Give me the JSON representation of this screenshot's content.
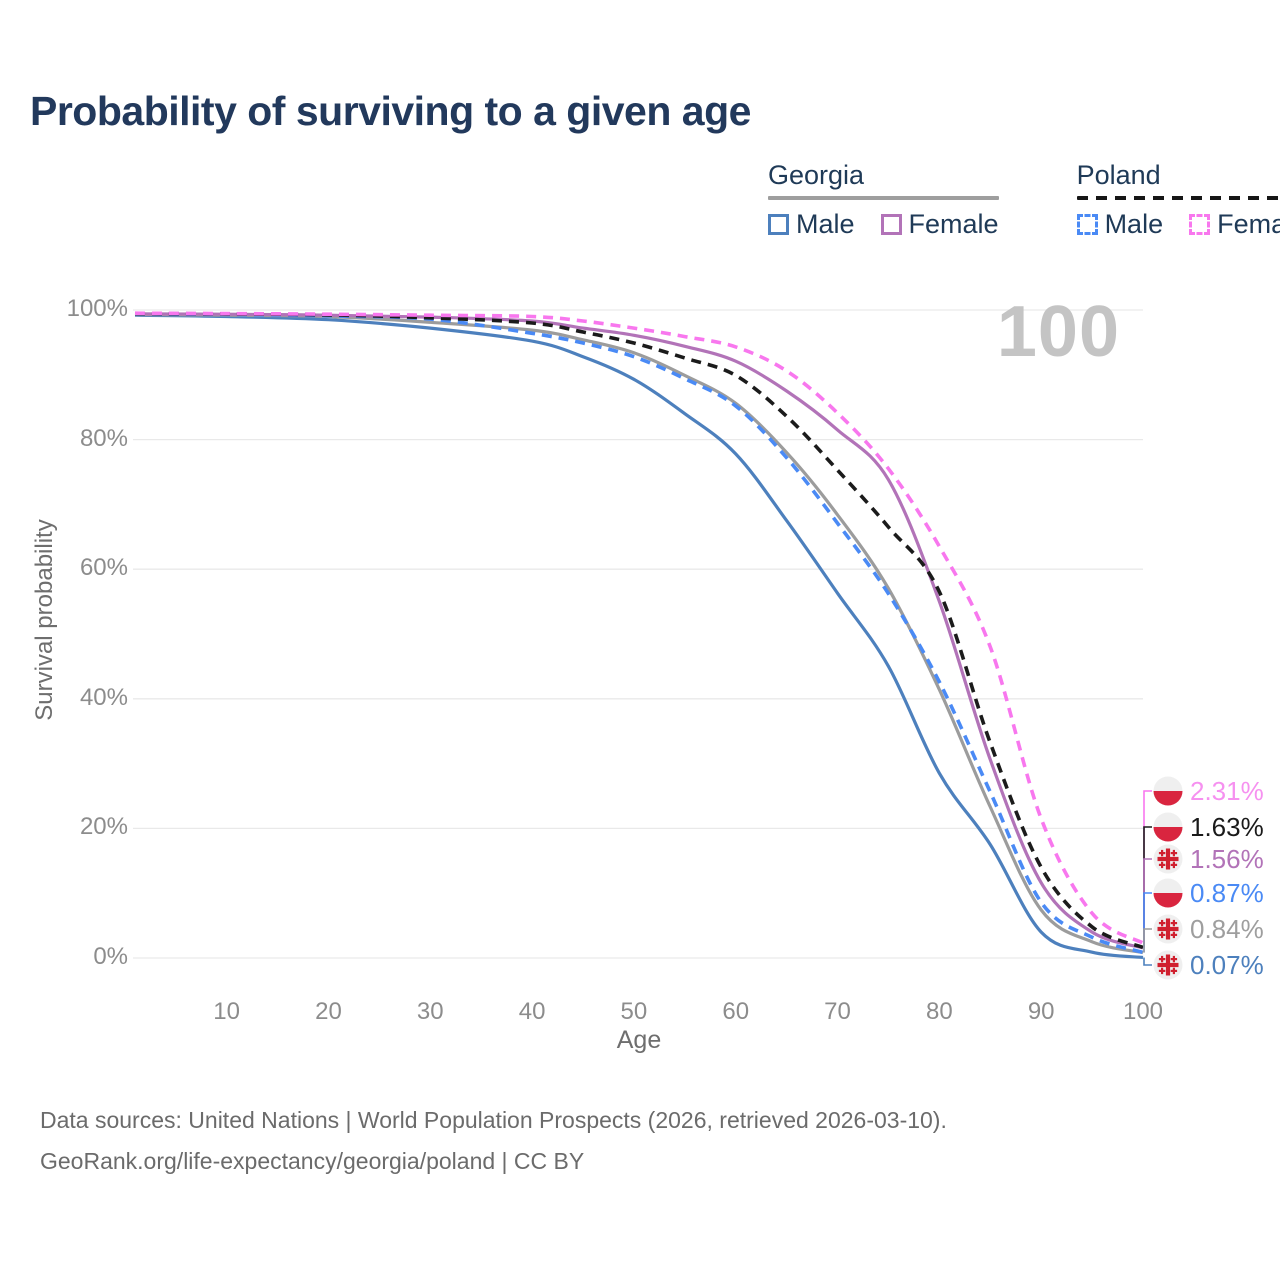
{
  "page": {
    "title": "Probability of surviving to a given age",
    "watermark": "100"
  },
  "legend": {
    "georgia_label": "Georgia",
    "poland_label": "Poland",
    "georgia_male": "Male",
    "georgia_female": "Female",
    "poland_male": "Male",
    "poland_female": "Female"
  },
  "chart_data": {
    "type": "line",
    "title": "Probability of surviving to a given age",
    "xlabel": "Age",
    "ylabel": "Survival probability",
    "xlim": [
      1,
      100
    ],
    "ylim": [
      0,
      100
    ],
    "grid": "horizontal-only",
    "legend_position": "top-right",
    "x_ticks": [
      "10",
      "20",
      "30",
      "40",
      "50",
      "60",
      "70",
      "80",
      "90",
      "100"
    ],
    "x_tick_values": [
      10,
      20,
      30,
      40,
      50,
      60,
      70,
      80,
      90,
      100
    ],
    "y_ticks": [
      "0%",
      "20%",
      "40%",
      "60%",
      "80%",
      "100%"
    ],
    "y_tick_values": [
      0,
      20,
      40,
      60,
      80,
      100
    ],
    "ages": [
      1,
      10,
      20,
      30,
      40,
      45,
      50,
      55,
      60,
      65,
      70,
      75,
      80,
      85,
      90,
      95,
      100
    ],
    "series": [
      {
        "id": "georgia_male",
        "name": "Georgia Male",
        "color": "#4d80bd",
        "dash": "solid",
        "flag": "georgia",
        "end_label": "0.07%",
        "label_color": "#4d80bd",
        "values": [
          99.2,
          99.0,
          98.5,
          97.2,
          95.2,
          92.8,
          89.3,
          84.0,
          77.8,
          67.5,
          56.3,
          45.0,
          28.5,
          17.5,
          4.0,
          0.9,
          0.07
        ]
      },
      {
        "id": "georgia_all",
        "name": "Georgia (both sexes)",
        "color": "#9c9c9c",
        "dash": "solid",
        "flag": "georgia",
        "end_label": "0.84%",
        "label_color": "#9e9e9e",
        "values": [
          99.3,
          99.2,
          99.0,
          98.1,
          96.9,
          95.4,
          93.4,
          89.9,
          85.6,
          78.0,
          68.4,
          57.0,
          41.4,
          23.3,
          7.4,
          2.5,
          0.84
        ]
      },
      {
        "id": "poland_male",
        "name": "Poland Male",
        "color": "#4a8af5",
        "dash": "dashed",
        "flag": "poland",
        "end_label": "0.87%",
        "label_color": "#4a8af5",
        "values": [
          99.4,
          99.3,
          99.1,
          98.6,
          96.4,
          94.9,
          92.8,
          89.4,
          85.2,
          77.2,
          67.1,
          56.2,
          42.6,
          25.6,
          8.6,
          3.2,
          0.87
        ]
      },
      {
        "id": "georgia_female",
        "name": "Georgia Female",
        "color": "#b273b8",
        "dash": "solid",
        "flag": "georgia",
        "end_label": "1.56%",
        "label_color": "#b273b8",
        "values": [
          99.4,
          99.35,
          99.2,
          98.9,
          98.3,
          97.2,
          96.1,
          94.4,
          92.1,
          87.5,
          81.5,
          73.8,
          55.0,
          30.6,
          11.6,
          4.0,
          1.56
        ]
      },
      {
        "id": "poland_all",
        "name": "Poland (both sexes)",
        "color": "#1b1b1b",
        "dash": "dashed",
        "flag": "poland",
        "end_label": "1.63%",
        "label_color": "#1a1a1a",
        "values": [
          99.45,
          99.4,
          99.25,
          98.8,
          98.0,
          96.6,
          94.9,
          92.6,
          89.9,
          83.6,
          75.3,
          66.5,
          56.5,
          33.2,
          14.0,
          4.8,
          1.63
        ]
      },
      {
        "id": "poland_female",
        "name": "Poland Female",
        "color": "#f877ee",
        "dash": "dashed",
        "flag": "poland",
        "end_label": "2.31%",
        "label_color": "#f691f0",
        "values": [
          99.5,
          99.45,
          99.35,
          99.2,
          99.0,
          98.3,
          97.2,
          95.9,
          94.3,
          90.6,
          84.1,
          75.5,
          63.5,
          48.0,
          21.5,
          6.9,
          2.31
        ]
      }
    ],
    "flag_colors": {
      "poland_red": "#d9253f",
      "georgia_red": "#d0202f",
      "flag_bg": "#efefef"
    },
    "gridline_color": "#e9e9e9"
  },
  "footer": {
    "line1": "Data sources: United Nations | World Population Prospects (2026, retrieved 2026-03-10).",
    "line2": "GeoRank.org/life-expectancy/georgia/poland | CC BY"
  }
}
